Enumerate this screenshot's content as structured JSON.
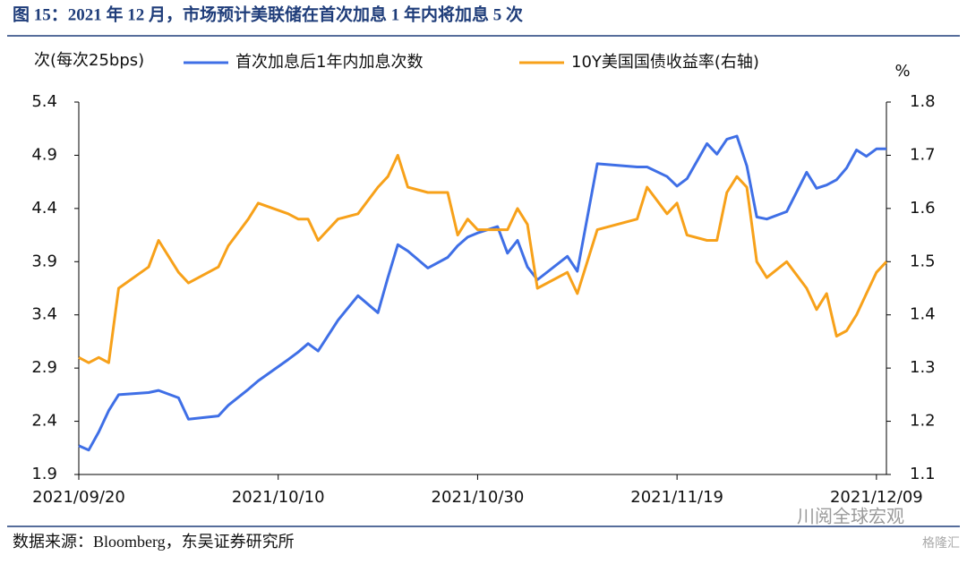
{
  "chart_data": {
    "type": "line",
    "title": "图 15：2021 年 12 月，市场预计美联储在首次加息 1 年内将加息 5 次",
    "source": "数据来源：Bloomberg，东吴证券研究所",
    "watermark": "川阅全球宏观",
    "watermark2": "格隆汇",
    "ylabel": "次(每次25bps)",
    "y2label": "%",
    "x": [
      "2021/09/20",
      "2021/09/21",
      "2021/09/22",
      "2021/09/23",
      "2021/09/24",
      "2021/09/27",
      "2021/09/28",
      "2021/09/30",
      "2021/10/01",
      "2021/10/04",
      "2021/10/05",
      "2021/10/07",
      "2021/10/08",
      "2021/10/11",
      "2021/10/12",
      "2021/10/13",
      "2021/10/14",
      "2021/10/16",
      "2021/10/18",
      "2021/10/20",
      "2021/10/21",
      "2021/10/22",
      "2021/10/23",
      "2021/10/25",
      "2021/10/27",
      "2021/10/28",
      "2021/10/29",
      "2021/10/30",
      "2021/11/01",
      "2021/11/02",
      "2021/11/03",
      "2021/11/04",
      "2021/11/05",
      "2021/11/08",
      "2021/11/09",
      "2021/11/11",
      "2021/11/15",
      "2021/11/16",
      "2021/11/18",
      "2021/11/19",
      "2021/11/20",
      "2021/11/22",
      "2021/11/23",
      "2021/11/24",
      "2021/11/25",
      "2021/11/26",
      "2021/11/27",
      "2021/11/28",
      "2021/11/30",
      "2021/12/02",
      "2021/12/03",
      "2021/12/04",
      "2021/12/05",
      "2021/12/06",
      "2021/12/07",
      "2021/12/08",
      "2021/12/09",
      "2021/12/10"
    ],
    "series": [
      {
        "name": "首次加息后1年内加息次数",
        "color": "#3f6fe6",
        "values": [
          2.17,
          2.13,
          2.3,
          2.5,
          2.65,
          2.67,
          2.69,
          2.62,
          2.42,
          2.45,
          2.55,
          2.7,
          2.78,
          2.98,
          3.05,
          3.13,
          3.06,
          3.35,
          3.58,
          3.42,
          3.75,
          4.06,
          4.0,
          3.84,
          3.94,
          4.05,
          4.13,
          4.17,
          4.23,
          3.98,
          4.1,
          3.85,
          3.73,
          3.95,
          3.81,
          4.82,
          4.79,
          4.79,
          4.7,
          4.61,
          4.68,
          5.01,
          4.91,
          5.05,
          5.08,
          4.8,
          4.32,
          4.3,
          4.37,
          4.74,
          4.59,
          4.62,
          4.67,
          4.78,
          4.95,
          4.89,
          4.96,
          4.96
        ]
      },
      {
        "name": "10Y美国国债收益率(右轴)",
        "color": "#f7a11a",
        "axis": "y2",
        "values": [
          1.32,
          1.31,
          1.32,
          1.31,
          1.45,
          1.49,
          1.54,
          1.48,
          1.46,
          1.49,
          1.53,
          1.58,
          1.61,
          1.59,
          1.58,
          1.58,
          1.54,
          1.58,
          1.59,
          1.64,
          1.66,
          1.7,
          1.64,
          1.63,
          1.63,
          1.55,
          1.58,
          1.56,
          1.56,
          1.56,
          1.6,
          1.57,
          1.45,
          1.48,
          1.44,
          1.56,
          1.58,
          1.64,
          1.59,
          1.61,
          1.55,
          1.54,
          1.54,
          1.63,
          1.66,
          1.64,
          1.5,
          1.47,
          1.5,
          1.45,
          1.41,
          1.44,
          1.36,
          1.37,
          1.4,
          1.44,
          1.48,
          1.5
        ]
      }
    ],
    "xlim": [
      "2021/09/20",
      "2021/12/10"
    ],
    "xticks": [
      "2021/09/20",
      "2021/10/10",
      "2021/10/30",
      "2021/11/19",
      "2021/12/09"
    ],
    "ylim": [
      1.9,
      5.4
    ],
    "yticks": [
      1.9,
      2.4,
      2.9,
      3.4,
      3.9,
      4.4,
      4.9,
      5.4
    ],
    "y2lim": [
      1.1,
      1.8
    ],
    "y2ticks": [
      1.1,
      1.2,
      1.3,
      1.4,
      1.5,
      1.6,
      1.7,
      1.8
    ]
  }
}
